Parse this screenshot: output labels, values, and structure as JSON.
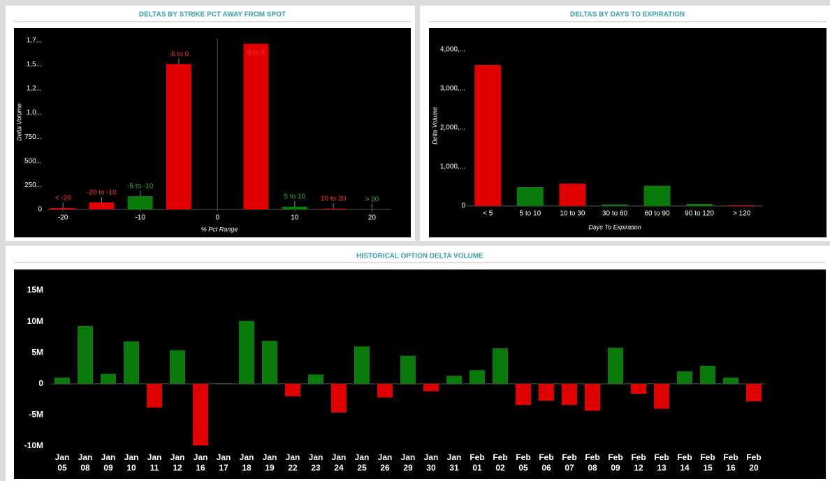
{
  "chart_data": [
    {
      "type": "bar",
      "title": "DELTAS BY STRIKE PCT AWAY FROM SPOT",
      "x_label": "% Pct Range",
      "y_label": "Delta Volume",
      "categories": [
        "< -20",
        "-20 to -10",
        "-5 to -10",
        "-5 to 0",
        "0 to 5",
        "5 to 10",
        "10 to 20",
        "> 20"
      ],
      "x": [
        -20,
        -15,
        -10,
        -5,
        5,
        10,
        15,
        20
      ],
      "values": [
        15000,
        72000,
        137000,
        1505000,
        1715000,
        29000,
        7000,
        2000
      ],
      "colors": [
        "#e00000",
        "#e00000",
        "#0a7a0a",
        "#e00000",
        "#e00000",
        "#0a7a0a",
        "#e00000",
        "#0a7a0a"
      ],
      "xlim": [
        -22,
        22.5
      ],
      "xticks": [
        -20,
        -10,
        0,
        10,
        20
      ],
      "ylim": [
        0,
        1770000
      ],
      "yticks": [
        0,
        {
          "value": 250000,
          "label": "250..."
        },
        {
          "value": 500000,
          "label": "500..."
        },
        {
          "value": 750000,
          "label": "750..."
        },
        {
          "value": 1000000,
          "label": "1,0..."
        },
        {
          "value": 1250000,
          "label": "1,2..."
        },
        {
          "value": 1500000,
          "label": "1,5..."
        },
        {
          "value": 1750000,
          "label": "1,7..."
        }
      ]
    },
    {
      "type": "bar",
      "title": "DELTAS BY DAYS TO EXPIRATION",
      "x_label": "Days To Expiration",
      "y_label": "Delta Volume",
      "categories": [
        "< 5",
        "5 to 10",
        "10 to 30",
        "30 to 60",
        "60 to 90",
        "90 to 120",
        "> 120"
      ],
      "values": [
        3607000,
        482000,
        571000,
        36000,
        518000,
        54000,
        18000
      ],
      "colors": [
        "#e00000",
        "#0a7a0a",
        "#e00000",
        "#0a7a0a",
        "#0a7a0a",
        "#0a7a0a",
        "#e00000"
      ],
      "ylim": [
        0,
        4250000
      ],
      "yticks": [
        0,
        {
          "value": 1000000,
          "label": "1,000,..."
        },
        {
          "value": 2000000,
          "label": "2,000,..."
        },
        {
          "value": 3000000,
          "label": "3,000,..."
        },
        {
          "value": 4000000,
          "label": "4,000,..."
        }
      ]
    },
    {
      "type": "bar",
      "title": "HISTORICAL OPTION DELTA VOLUME",
      "categories": [
        "Jan 05",
        "Jan 08",
        "Jan 09",
        "Jan 10",
        "Jan 11",
        "Jan 12",
        "Jan 16",
        "Jan 17",
        "Jan 18",
        "Jan 19",
        "Jan 22",
        "Jan 23",
        "Jan 24",
        "Jan 25",
        "Jan 26",
        "Jan 29",
        "Jan 30",
        "Jan 31",
        "Feb 01",
        "Feb 02",
        "Feb 05",
        "Feb 06",
        "Feb 07",
        "Feb 08",
        "Feb 09",
        "Feb 12",
        "Feb 13",
        "Feb 14",
        "Feb 15",
        "Feb 16",
        "Feb 20"
      ],
      "values": [
        1000000,
        9300000,
        1600000,
        6800000,
        -3800000,
        5400000,
        -9900000,
        100000,
        10100000,
        6900000,
        -2000000,
        1500000,
        -4600000,
        6000000,
        -2200000,
        4500000,
        -1200000,
        1300000,
        2200000,
        5700000,
        -3400000,
        -2700000,
        -3400000,
        -4300000,
        5800000,
        -1600000,
        -4000000,
        2000000,
        2900000,
        1000000,
        -2800000
      ],
      "positive_color": "#0a7a0a",
      "negative_color": "#e00000",
      "ylim": [
        -11000000,
        16500000
      ],
      "yticks": [
        {
          "value": -10000000,
          "label": "-10M"
        },
        {
          "value": -5000000,
          "label": "-5M"
        },
        0,
        {
          "value": 5000000,
          "label": "5M"
        },
        {
          "value": 10000000,
          "label": "10M"
        },
        {
          "value": 15000000,
          "label": "15M"
        }
      ]
    }
  ]
}
